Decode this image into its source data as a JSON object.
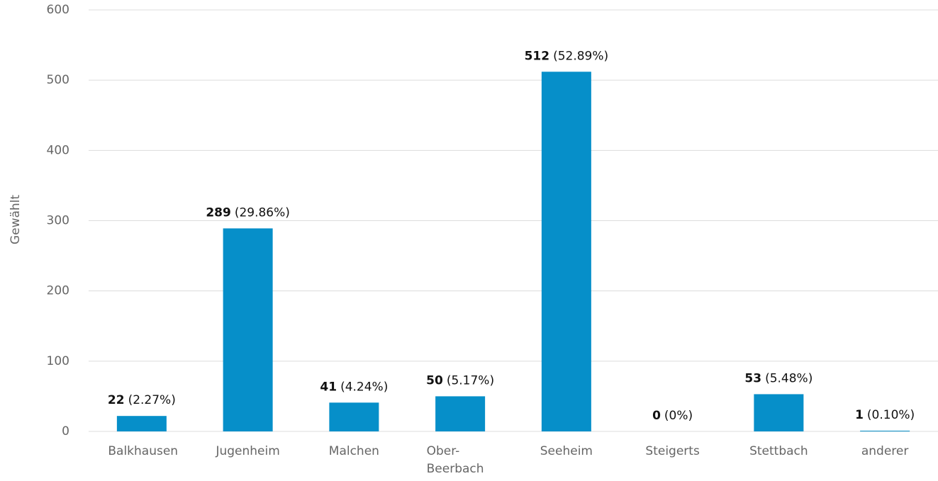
{
  "chart_data": {
    "type": "bar",
    "y_label": "Gewählt",
    "categories": [
      "Balkhausen",
      "Jugenheim",
      "Malchen",
      "Ober-Beerbach",
      "Seeheim",
      "Steigerts",
      "Stettbach",
      "anderer"
    ],
    "values": [
      22,
      289,
      41,
      50,
      512,
      0,
      53,
      1
    ],
    "percent_labels": [
      "(2.27%)",
      "(29.86%)",
      "(4.24%)",
      "(5.17%)",
      "(52.89%)",
      "(0%)",
      "(5.48%)",
      "(0.10%)"
    ],
    "color": "#068fc9",
    "ylim": [
      0,
      600
    ],
    "yticks": [
      0,
      100,
      200,
      300,
      400,
      500,
      600
    ],
    "grid": true
  }
}
